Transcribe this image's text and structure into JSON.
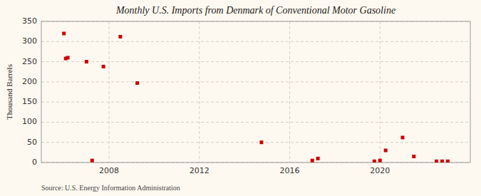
{
  "chart_data": {
    "type": "scatter",
    "title": "Monthly U.S. Imports from Denmark of Conventional Motor Gasoline",
    "y_label": "Thousand Barrels",
    "source": "Source: U.S. Energy Information Administration",
    "x": [
      2006.0,
      2006.08,
      2006.17,
      2007.0,
      2007.25,
      2007.75,
      2008.5,
      2009.25,
      2014.75,
      2017.0,
      2017.25,
      2019.75,
      2020.0,
      2020.25,
      2021.0,
      2021.5,
      2022.5,
      2022.75,
      2023.0
    ],
    "values": [
      320,
      258,
      260,
      250,
      5,
      238,
      312,
      197,
      50,
      5,
      10,
      3,
      5,
      30,
      62,
      15,
      3,
      3,
      3
    ],
    "color": "#cc0000",
    "marker": "square",
    "xlim": [
      2005.0,
      2024.0
    ],
    "xticks": [
      2008,
      2012,
      2016,
      2020
    ],
    "ylim": [
      0,
      350
    ],
    "yticks": [
      0,
      50,
      100,
      150,
      200,
      250,
      300,
      350
    ],
    "grid": true
  }
}
